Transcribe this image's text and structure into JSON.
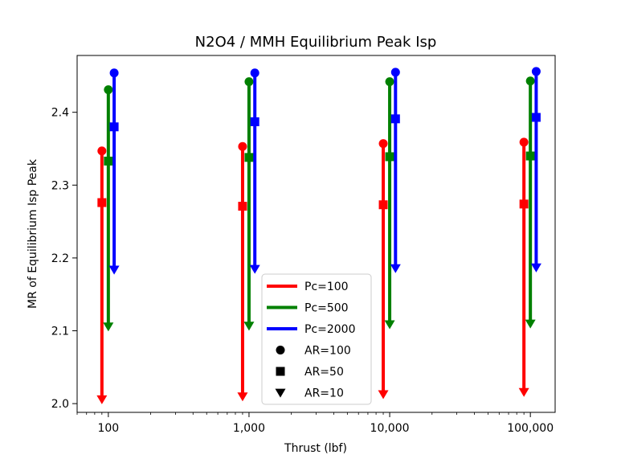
{
  "chart_data": {
    "type": "scatter",
    "title": "N2O4 / MMH Equilibrium Peak Isp",
    "xlabel": "Thrust (lbf)",
    "ylabel": "MR of Equilibrium Isp Peak",
    "x_scale": "log",
    "xlim": [
      60,
      150000
    ],
    "ylim": [
      1.988,
      2.478
    ],
    "x_ticks": [
      100,
      1000,
      10000,
      100000
    ],
    "x_tick_labels": [
      "100",
      "1,000",
      "10,000",
      "100,000"
    ],
    "y_ticks": [
      2.0,
      2.1,
      2.2,
      2.3,
      2.4
    ],
    "y_tick_labels": [
      "2.0",
      "2.1",
      "2.2",
      "2.3",
      "2.4"
    ],
    "grid": false,
    "legend_position": "bottom-center",
    "legend": [
      {
        "label": "Pc=100",
        "kind": "line",
        "color": "#ff0000"
      },
      {
        "label": "Pc=500",
        "kind": "line",
        "color": "#008000"
      },
      {
        "label": "Pc=2000",
        "kind": "line",
        "color": "#0000ff"
      },
      {
        "label": "AR=100",
        "kind": "marker",
        "marker": "circle"
      },
      {
        "label": "AR=50",
        "kind": "marker",
        "marker": "square"
      },
      {
        "label": "AR=10",
        "kind": "marker",
        "marker": "triangle-down"
      }
    ],
    "series": [
      {
        "name": "Pc=100",
        "color": "#ff0000",
        "points": [
          {
            "x": 90,
            "AR100": 2.347,
            "AR50": 2.276,
            "AR10": 2.006
          },
          {
            "x": 900,
            "AR100": 2.353,
            "AR50": 2.271,
            "AR10": 2.01
          },
          {
            "x": 9000,
            "AR100": 2.357,
            "AR50": 2.273,
            "AR10": 2.013
          },
          {
            "x": 90000,
            "AR100": 2.359,
            "AR50": 2.274,
            "AR10": 2.016
          }
        ]
      },
      {
        "name": "Pc=500",
        "color": "#008000",
        "points": [
          {
            "x": 100,
            "AR100": 2.431,
            "AR50": 2.333,
            "AR10": 2.106
          },
          {
            "x": 1000,
            "AR100": 2.442,
            "AR50": 2.338,
            "AR10": 2.107
          },
          {
            "x": 10000,
            "AR100": 2.442,
            "AR50": 2.339,
            "AR10": 2.109
          },
          {
            "x": 100000,
            "AR100": 2.443,
            "AR50": 2.34,
            "AR10": 2.11
          }
        ]
      },
      {
        "name": "Pc=2000",
        "color": "#0000ff",
        "points": [
          {
            "x": 110,
            "AR100": 2.454,
            "AR50": 2.38,
            "AR10": 2.184
          },
          {
            "x": 1100,
            "AR100": 2.454,
            "AR50": 2.387,
            "AR10": 2.185
          },
          {
            "x": 11000,
            "AR100": 2.455,
            "AR50": 2.391,
            "AR10": 2.186
          },
          {
            "x": 110000,
            "AR100": 2.456,
            "AR50": 2.393,
            "AR10": 2.187
          }
        ]
      }
    ]
  }
}
